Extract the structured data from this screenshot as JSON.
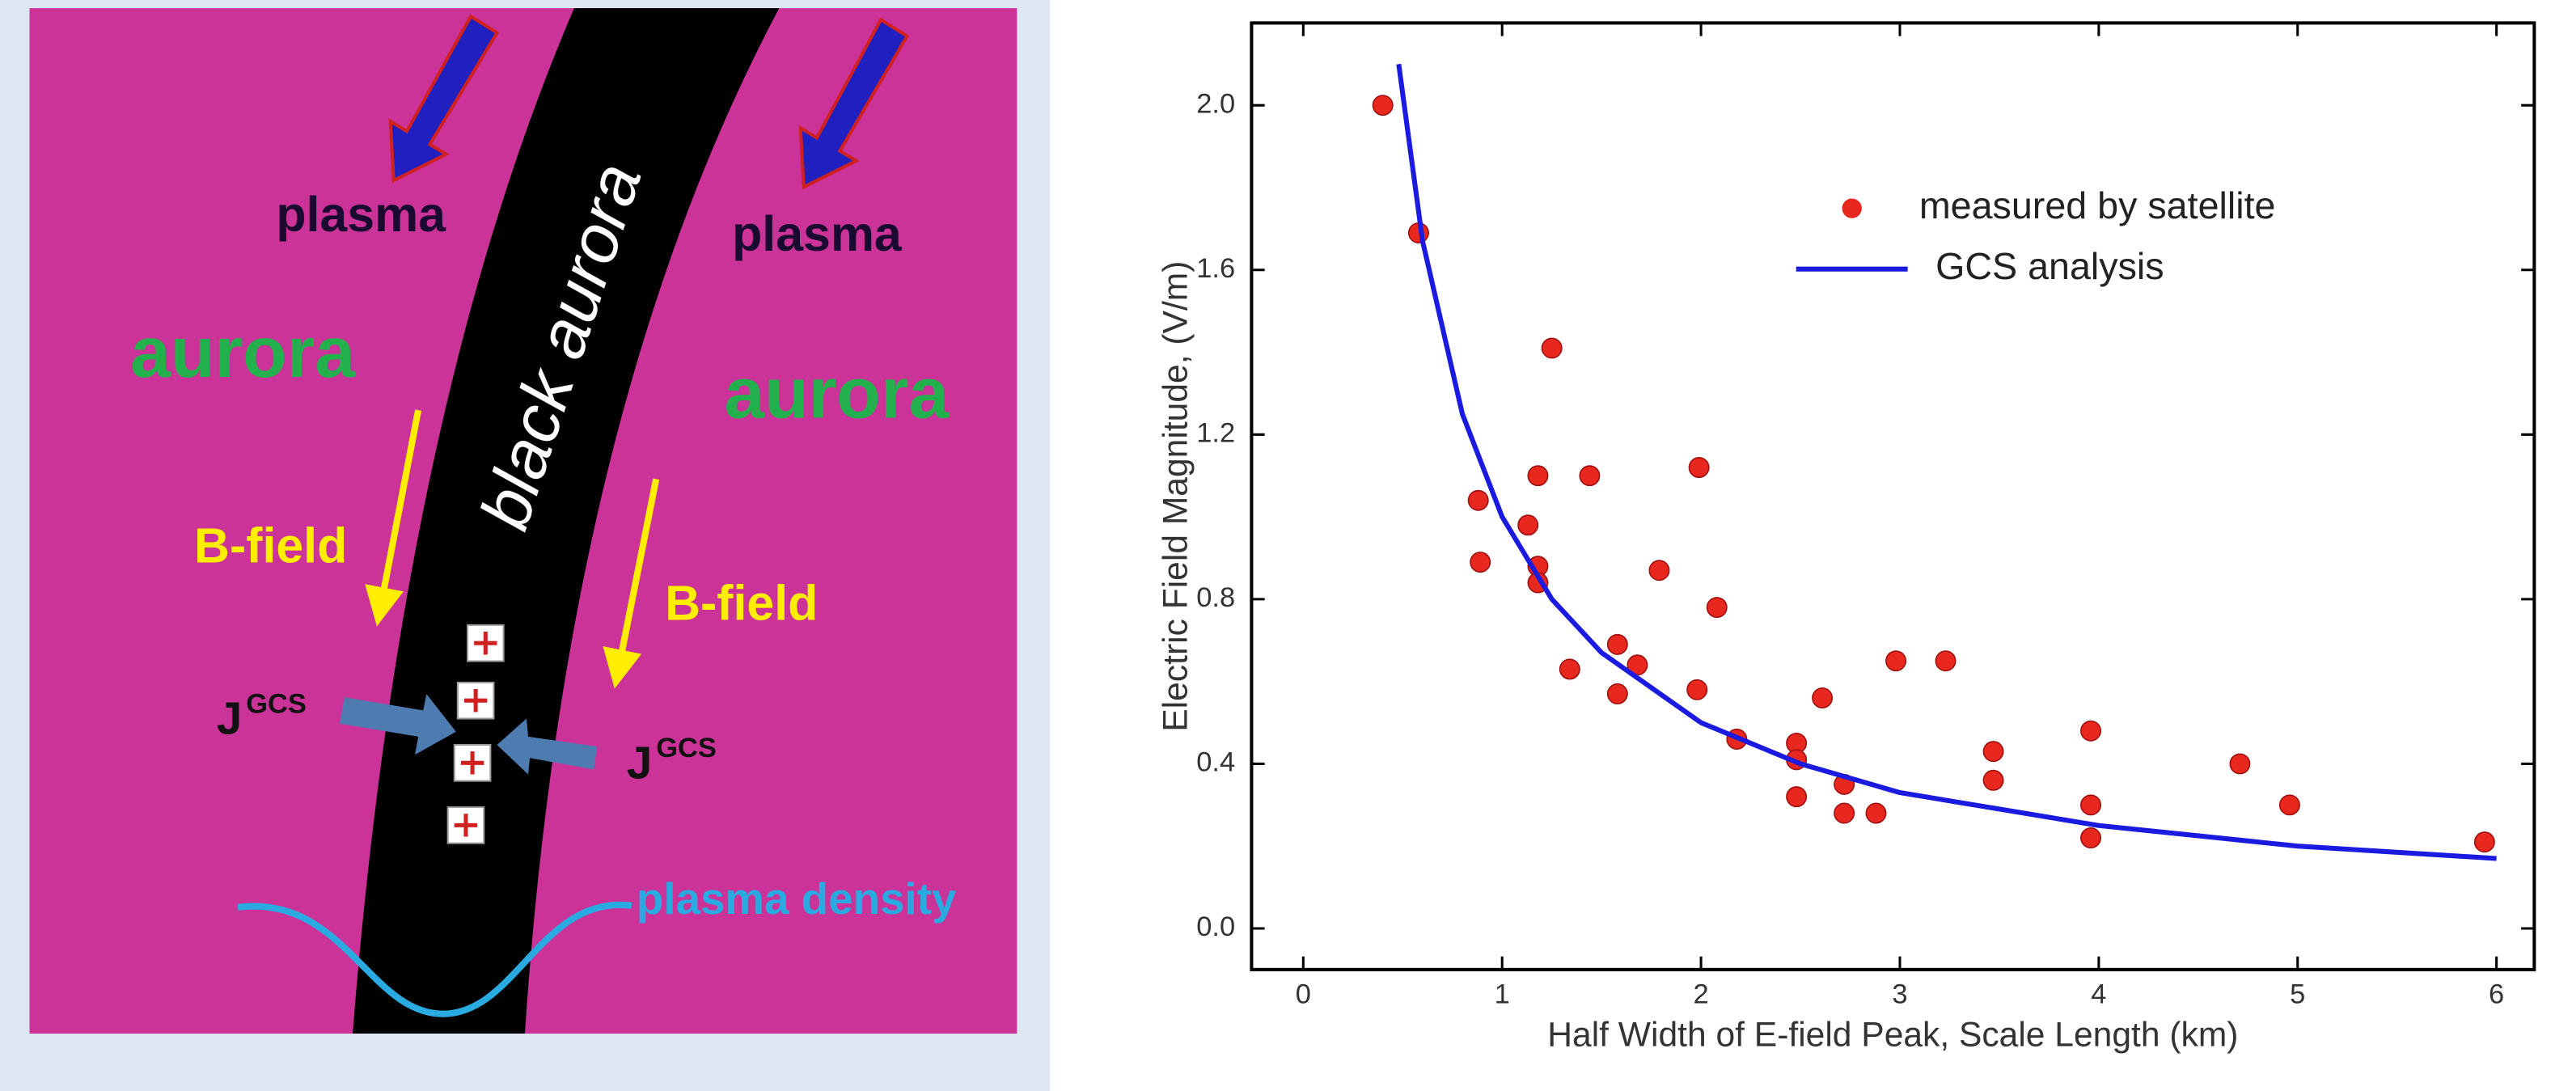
{
  "diagram": {
    "texts": [
      "plasma",
      "plasma",
      "aurora",
      "aurora",
      "black aurora",
      "B-field",
      "B-field",
      "J",
      "GCS",
      "J",
      "GCS",
      "plasma density"
    ]
  },
  "chart_data": {
    "type": "scatter",
    "xlabel": "Half Width of E-field Peak, Scale Length (km)",
    "ylabel": "Electric Field Magnitude, (V/m)",
    "xlim": [
      -0.26,
      6.19
    ],
    "ylim": [
      -0.1,
      2.2
    ],
    "xticks": [
      0,
      1,
      2,
      3,
      4,
      5,
      6
    ],
    "yticks": [
      {
        "value": 0,
        "label": "0.0"
      },
      0.4,
      0.8,
      1.2,
      1.6,
      {
        "value": 2,
        "label": "2.0"
      }
    ],
    "legend": "upper right",
    "series": [
      {
        "name": "measured by satellite",
        "type": "scatter",
        "color": "#e8281e",
        "x": [
          0.4,
          0.58,
          0.88,
          0.89,
          1.13,
          1.18,
          1.18,
          1.18,
          1.25,
          1.34,
          1.44,
          1.58,
          1.58,
          1.68,
          1.79,
          1.98,
          1.99,
          2.08,
          2.18,
          2.48,
          2.48,
          2.48,
          2.61,
          2.72,
          2.72,
          2.88,
          2.98,
          3.23,
          3.47,
          3.47,
          3.96,
          3.96,
          3.96,
          4.71,
          4.96,
          5.94
        ],
        "values": [
          2.0,
          1.69,
          1.04,
          0.89,
          0.98,
          1.1,
          0.88,
          0.84,
          1.41,
          0.63,
          1.1,
          0.69,
          0.57,
          0.64,
          0.87,
          0.58,
          1.12,
          0.78,
          0.46,
          0.45,
          0.41,
          0.32,
          0.56,
          0.35,
          0.28,
          0.28,
          0.65,
          0.65,
          0.43,
          0.36,
          0.48,
          0.3,
          0.22,
          0.4,
          0.3,
          0.21
        ]
      },
      {
        "name": "GCS analysis",
        "type": "line",
        "color": "#1a1ae0",
        "x": [
          0.48,
          0.6,
          0.8,
          1,
          1.25,
          1.5,
          2,
          2.5,
          3,
          3.5,
          4,
          5,
          6
        ],
        "values": [
          2.1,
          1.67,
          1.25,
          1.0,
          0.8,
          0.67,
          0.5,
          0.4,
          0.33,
          0.29,
          0.25,
          0.2,
          0.17
        ]
      }
    ]
  }
}
